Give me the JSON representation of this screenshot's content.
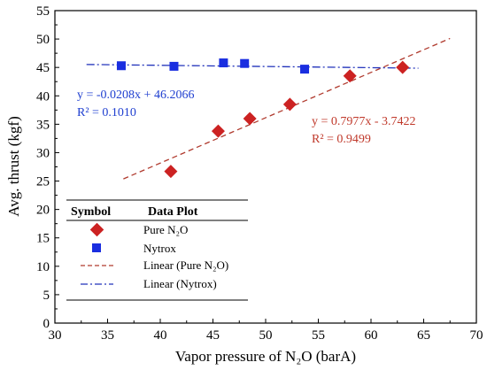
{
  "chart_data": {
    "type": "scatter",
    "xlabel": "Vapor pressure of N₂O (barA)",
    "ylabel": "Avg. thrust (kgf)",
    "xlim": [
      30,
      70
    ],
    "ylim": [
      0,
      55
    ],
    "x_ticks": [
      30,
      35,
      40,
      45,
      50,
      55,
      60,
      65,
      70
    ],
    "y_ticks": [
      0,
      5,
      10,
      15,
      20,
      25,
      30,
      35,
      40,
      45,
      50,
      55
    ],
    "grid": false,
    "colors": {
      "pure": "#cc2222",
      "nytrox": "#1a2ee0",
      "pure_fit": "#b03a2e",
      "nytrox_fit": "#2233bb",
      "pure_text": "#c0392b",
      "nytrox_text": "#1f3fd0"
    },
    "series": [
      {
        "name": "Pure N₂O",
        "marker": "diamond",
        "x": [
          41.0,
          45.5,
          48.5,
          52.3,
          58.0,
          63.0
        ],
        "y": [
          26.7,
          33.8,
          36.0,
          38.5,
          43.5,
          45.0
        ]
      },
      {
        "name": "Nytrox",
        "marker": "square",
        "x": [
          36.3,
          41.3,
          46.0,
          48.0,
          53.7
        ],
        "y": [
          45.3,
          45.2,
          45.8,
          45.7,
          44.7
        ]
      }
    ],
    "fits": [
      {
        "name": "Linear (Pure N₂O)",
        "style": "dashed",
        "slope": 0.7977,
        "intercept": -3.7422,
        "x_range": [
          36.5,
          67.5
        ],
        "equation": "y = 0.7977x - 3.7422",
        "r2": "R² = 0.9499"
      },
      {
        "name": "Linear (Nytrox)",
        "style": "dashdot",
        "slope": -0.0208,
        "intercept": 46.2066,
        "x_range": [
          33.0,
          64.5
        ],
        "equation": "y = -0.0208x + 46.2066",
        "r2": "R² = 0.1010"
      }
    ],
    "legend": {
      "placement": "bottom-left",
      "header_symbol": "Symbol",
      "header_plot": "Data Plot"
    }
  }
}
